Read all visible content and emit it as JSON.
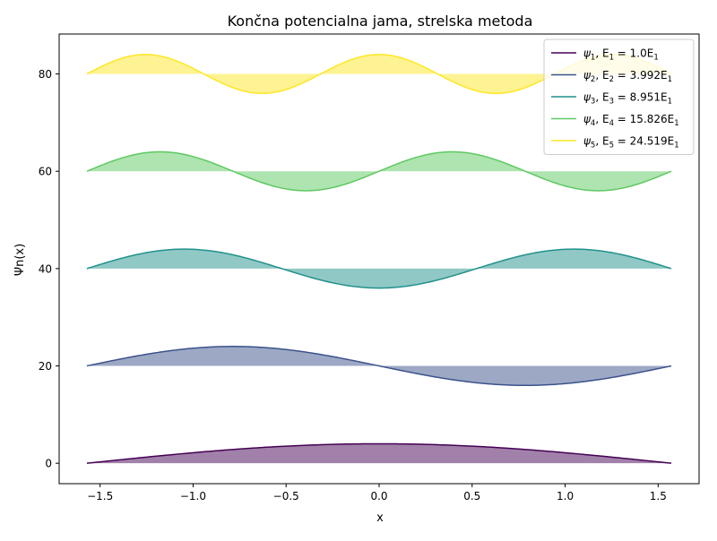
{
  "chart_data": {
    "type": "line",
    "title": "Končna potencialna jama, strelska metoda",
    "xlabel": "x",
    "ylabel": "Ψn(x)",
    "xlim": [
      -1.72,
      1.72
    ],
    "ylim": [
      -4.2,
      88.2
    ],
    "xticks": [
      -1.5,
      -1.0,
      -0.5,
      0.0,
      0.5,
      1.0,
      1.5
    ],
    "xtick_labels": [
      "−1.5",
      "−1.0",
      "−0.5",
      "0.0",
      "0.5",
      "1.0",
      "1.5"
    ],
    "yticks": [
      0,
      20,
      40,
      60,
      80
    ],
    "ytick_labels": [
      "0",
      "20",
      "40",
      "60",
      "80"
    ],
    "x_range": [
      -1.5708,
      1.5708
    ],
    "amplitude": 4,
    "grid": false,
    "legend_position": "top-right",
    "series": [
      {
        "n": 1,
        "offset": 0,
        "color": "#440154",
        "psi": "ψ",
        "sub": "1",
        "mid": ", E",
        "eq": " = 1.0E",
        "sub2": "1"
      },
      {
        "n": 2,
        "offset": 20,
        "color": "#3b528b",
        "psi": "ψ",
        "sub": "2",
        "mid": ", E",
        "eq": " = 3.992E",
        "sub2": "1"
      },
      {
        "n": 3,
        "offset": 40,
        "color": "#21918c",
        "psi": "ψ",
        "sub": "3",
        "mid": ", E",
        "eq": " = 8.951E",
        "sub2": "1"
      },
      {
        "n": 4,
        "offset": 60,
        "color": "#5ec962",
        "psi": "ψ",
        "sub": "4",
        "mid": ", E",
        "eq": " = 15.826E",
        "sub2": "1"
      },
      {
        "n": 5,
        "offset": 80,
        "color": "#fde725",
        "psi": "ψ",
        "sub": "5",
        "mid": ", E",
        "eq": " = 24.519E",
        "sub2": "1"
      }
    ]
  }
}
